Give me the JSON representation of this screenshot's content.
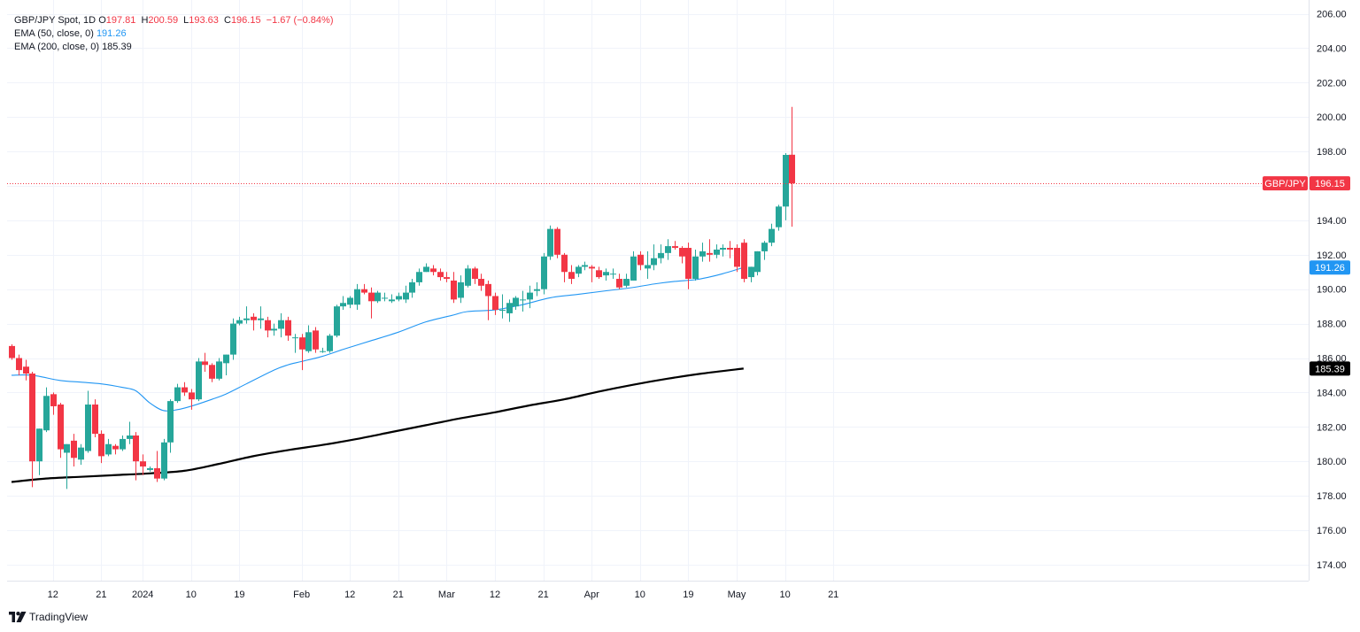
{
  "legend": {
    "symbol": "GBP/JPY Spot, 1D",
    "o_label": "O",
    "open": "197.81",
    "h_label": "H",
    "high": "200.59",
    "l_label": "L",
    "low": "193.63",
    "c_label": "C",
    "close": "196.15",
    "change": "−1.67 (−0.84%)",
    "ema50_label": "EMA (50, close, 0)",
    "ema50_value": "191.26",
    "ema200_label": "EMA (200, close, 0)",
    "ema200_value": "185.39"
  },
  "brand": {
    "name": "TradingView"
  },
  "colors": {
    "up": "#26a69a",
    "down": "#f23645",
    "ema50": "#2196f3",
    "ema200": "#000000",
    "grid": "#f0f3fa",
    "text": "#131722",
    "last_price": "#f23645"
  },
  "chart_data": {
    "type": "candlestick",
    "title": "GBP/JPY Spot, 1D",
    "ylim": [
      173,
      206
    ],
    "y_ticks": [
      174,
      176,
      178,
      180,
      182,
      184,
      186,
      188,
      190,
      192,
      194,
      196,
      198,
      200,
      202,
      204,
      206
    ],
    "y_tick_labels": [
      "174.00",
      "176.00",
      "178.00",
      "180.00",
      "182.00",
      "184.00",
      "186.00",
      "188.00",
      "190.00",
      "192.00",
      "194.00",
      "196.00",
      "198.00",
      "200.00",
      "202.00",
      "204.00",
      "206.00"
    ],
    "x_ticks": [
      {
        "i": 6,
        "label": "12"
      },
      {
        "i": 13,
        "label": "21"
      },
      {
        "i": 19,
        "label": "2024"
      },
      {
        "i": 26,
        "label": "10"
      },
      {
        "i": 33,
        "label": "19"
      },
      {
        "i": 42,
        "label": "Feb"
      },
      {
        "i": 49,
        "label": "12"
      },
      {
        "i": 56,
        "label": "21"
      },
      {
        "i": 63,
        "label": "Mar"
      },
      {
        "i": 70,
        "label": "12"
      },
      {
        "i": 77,
        "label": "21"
      },
      {
        "i": 84,
        "label": "Apr"
      },
      {
        "i": 91,
        "label": "10"
      },
      {
        "i": 98,
        "label": "19"
      },
      {
        "i": 105,
        "label": "May"
      },
      {
        "i": 112,
        "label": "10"
      },
      {
        "i": 119,
        "label": "21"
      }
    ],
    "candles": [
      [
        186.7,
        186.8,
        185.9,
        186.0
      ],
      [
        186.0,
        186.2,
        185.0,
        185.3
      ],
      [
        185.5,
        185.9,
        184.7,
        185.1
      ],
      [
        185.1,
        185.2,
        178.5,
        180.0
      ],
      [
        180.0,
        181.9,
        179.2,
        181.9
      ],
      [
        181.8,
        184.3,
        181.7,
        183.8
      ],
      [
        183.9,
        184.0,
        182.7,
        183.2
      ],
      [
        183.3,
        183.4,
        180.2,
        180.7
      ],
      [
        180.5,
        181.0,
        178.4,
        181.0
      ],
      [
        181.2,
        181.6,
        179.7,
        180.2
      ],
      [
        180.1,
        181.0,
        179.8,
        180.8
      ],
      [
        180.6,
        184.1,
        180.5,
        183.3
      ],
      [
        183.3,
        183.6,
        181.4,
        181.6
      ],
      [
        181.6,
        181.8,
        179.9,
        180.3
      ],
      [
        180.4,
        181.3,
        180.3,
        181.0
      ],
      [
        180.9,
        181.0,
        180.4,
        180.7
      ],
      [
        180.7,
        181.5,
        180.6,
        181.3
      ],
      [
        181.3,
        182.3,
        181.0,
        181.5
      ],
      [
        181.5,
        181.7,
        178.9,
        180.0
      ],
      [
        180.0,
        180.4,
        179.2,
        179.7
      ],
      [
        179.5,
        179.7,
        179.4,
        179.6
      ],
      [
        179.6,
        180.6,
        178.8,
        179.0
      ],
      [
        179.0,
        181.3,
        178.9,
        181.1
      ],
      [
        181.1,
        183.6,
        180.5,
        183.5
      ],
      [
        183.5,
        184.5,
        183.4,
        184.3
      ],
      [
        184.3,
        184.6,
        183.8,
        184.0
      ],
      [
        184.0,
        184.2,
        183.0,
        183.6
      ],
      [
        183.6,
        186.0,
        183.5,
        185.8
      ],
      [
        185.8,
        186.3,
        185.2,
        185.6
      ],
      [
        185.6,
        185.7,
        184.6,
        184.8
      ],
      [
        184.8,
        186.0,
        184.7,
        185.8
      ],
      [
        185.7,
        186.2,
        185.0,
        186.2
      ],
      [
        186.2,
        188.3,
        185.9,
        188.0
      ],
      [
        188.0,
        188.4,
        187.9,
        188.2
      ],
      [
        188.2,
        189.0,
        188.0,
        188.3
      ],
      [
        188.4,
        188.6,
        187.6,
        188.2
      ],
      [
        188.2,
        189.0,
        187.7,
        188.3
      ],
      [
        188.2,
        188.4,
        187.2,
        187.6
      ],
      [
        187.6,
        188.0,
        187.3,
        187.7
      ],
      [
        187.7,
        188.6,
        187.2,
        188.2
      ],
      [
        188.2,
        188.4,
        187.0,
        187.3
      ],
      [
        187.2,
        187.4,
        186.3,
        187.2
      ],
      [
        187.2,
        187.4,
        185.3,
        186.5
      ],
      [
        186.4,
        187.9,
        186.3,
        187.5
      ],
      [
        187.6,
        187.8,
        186.3,
        186.5
      ],
      [
        186.4,
        186.6,
        186.3,
        186.4
      ],
      [
        186.4,
        187.4,
        186.3,
        187.3
      ],
      [
        187.3,
        189.1,
        187.2,
        189.0
      ],
      [
        189.0,
        189.6,
        188.8,
        189.2
      ],
      [
        189.1,
        189.6,
        188.9,
        189.5
      ],
      [
        189.1,
        190.3,
        188.8,
        190.0
      ],
      [
        190.0,
        190.3,
        189.7,
        189.8
      ],
      [
        189.8,
        190.1,
        188.3,
        189.3
      ],
      [
        189.3,
        189.9,
        189.2,
        189.8
      ],
      [
        189.5,
        189.8,
        189.3,
        189.5
      ],
      [
        189.3,
        189.7,
        189.2,
        189.4
      ],
      [
        189.4,
        189.8,
        189.3,
        189.6
      ],
      [
        189.4,
        190.2,
        189.2,
        189.8
      ],
      [
        189.8,
        190.6,
        189.5,
        190.4
      ],
      [
        190.4,
        191.2,
        190.2,
        191.0
      ],
      [
        191.0,
        191.5,
        191.0,
        191.3
      ],
      [
        191.2,
        191.4,
        190.8,
        191.0
      ],
      [
        191.0,
        191.2,
        190.5,
        190.7
      ],
      [
        190.7,
        191.0,
        190.4,
        190.6
      ],
      [
        190.5,
        191.0,
        189.2,
        189.4
      ],
      [
        189.5,
        190.8,
        189.2,
        190.4
      ],
      [
        190.2,
        191.4,
        190.1,
        191.2
      ],
      [
        191.2,
        191.3,
        190.3,
        190.6
      ],
      [
        190.6,
        190.9,
        189.9,
        190.2
      ],
      [
        190.3,
        190.5,
        188.2,
        189.6
      ],
      [
        189.6,
        189.8,
        188.5,
        188.8
      ],
      [
        188.8,
        189.7,
        188.3,
        188.8
      ],
      [
        188.6,
        189.4,
        188.1,
        189.2
      ],
      [
        189.0,
        189.6,
        188.8,
        189.5
      ],
      [
        189.4,
        189.9,
        188.7,
        189.4
      ],
      [
        189.4,
        190.2,
        188.9,
        189.8
      ],
      [
        189.9,
        190.4,
        189.6,
        190.0
      ],
      [
        190.0,
        192.1,
        189.7,
        191.9
      ],
      [
        191.9,
        193.7,
        191.7,
        193.5
      ],
      [
        193.5,
        193.6,
        191.8,
        192.0
      ],
      [
        192.0,
        192.1,
        190.4,
        191.0
      ],
      [
        191.0,
        191.4,
        190.3,
        190.6
      ],
      [
        190.9,
        191.4,
        190.7,
        191.3
      ],
      [
        191.3,
        191.6,
        191.1,
        191.4
      ],
      [
        191.3,
        191.4,
        190.4,
        191.2
      ],
      [
        191.1,
        191.3,
        190.6,
        190.7
      ],
      [
        190.8,
        191.2,
        190.5,
        191.0
      ],
      [
        190.9,
        191.2,
        190.6,
        190.9
      ],
      [
        190.6,
        190.9,
        190.0,
        190.1
      ],
      [
        190.2,
        190.9,
        190.1,
        190.6
      ],
      [
        190.5,
        192.2,
        190.5,
        191.9
      ],
      [
        192.0,
        192.2,
        191.1,
        191.4
      ],
      [
        191.2,
        192.2,
        190.6,
        191.4
      ],
      [
        191.4,
        192.6,
        191.1,
        191.8
      ],
      [
        191.8,
        192.6,
        191.5,
        192.1
      ],
      [
        192.1,
        192.9,
        191.7,
        192.5
      ],
      [
        192.5,
        192.8,
        192.3,
        192.4
      ],
      [
        192.4,
        192.5,
        191.5,
        191.9
      ],
      [
        192.4,
        192.7,
        190.0,
        190.6
      ],
      [
        190.6,
        192.3,
        190.5,
        191.9
      ],
      [
        191.9,
        192.7,
        191.6,
        192.2
      ],
      [
        192.1,
        192.9,
        191.6,
        192.0
      ],
      [
        192.0,
        192.6,
        191.8,
        192.3
      ],
      [
        192.3,
        192.6,
        191.9,
        192.4
      ],
      [
        192.4,
        192.8,
        191.8,
        192.3
      ],
      [
        192.4,
        192.6,
        191.0,
        191.3
      ],
      [
        192.7,
        192.9,
        190.4,
        190.6
      ],
      [
        190.7,
        191.3,
        190.4,
        191.3
      ],
      [
        191.0,
        192.2,
        190.8,
        192.2
      ],
      [
        192.2,
        192.8,
        191.7,
        192.7
      ],
      [
        192.7,
        193.8,
        192.5,
        193.5
      ],
      [
        193.6,
        194.9,
        193.4,
        194.8
      ],
      [
        194.8,
        197.9,
        194.0,
        197.8
      ],
      [
        197.81,
        200.59,
        193.63,
        196.15
      ]
    ],
    "ema50_values": [
      {
        "i": 0,
        "v": 185.0
      },
      {
        "i": 3,
        "v": 185.0
      },
      {
        "i": 7,
        "v": 184.7
      },
      {
        "i": 10,
        "v": 184.6
      },
      {
        "i": 13,
        "v": 184.5
      },
      {
        "i": 16,
        "v": 184.3
      },
      {
        "i": 18,
        "v": 184.1
      },
      {
        "i": 20,
        "v": 183.4
      },
      {
        "i": 22,
        "v": 182.95
      },
      {
        "i": 24,
        "v": 183.0
      },
      {
        "i": 26,
        "v": 183.2
      },
      {
        "i": 29,
        "v": 183.6
      },
      {
        "i": 31,
        "v": 183.9
      },
      {
        "i": 34,
        "v": 184.5
      },
      {
        "i": 38,
        "v": 185.3
      },
      {
        "i": 40,
        "v": 185.6
      },
      {
        "i": 42,
        "v": 185.8
      },
      {
        "i": 45,
        "v": 186.1
      },
      {
        "i": 48,
        "v": 186.5
      },
      {
        "i": 52,
        "v": 187.0
      },
      {
        "i": 56,
        "v": 187.5
      },
      {
        "i": 60,
        "v": 188.1
      },
      {
        "i": 64,
        "v": 188.5
      },
      {
        "i": 66,
        "v": 188.7
      },
      {
        "i": 70,
        "v": 188.8
      },
      {
        "i": 74,
        "v": 189.1
      },
      {
        "i": 78,
        "v": 189.5
      },
      {
        "i": 82,
        "v": 189.7
      },
      {
        "i": 86,
        "v": 189.9
      },
      {
        "i": 90,
        "v": 190.1
      },
      {
        "i": 93,
        "v": 190.3
      },
      {
        "i": 96,
        "v": 190.45
      },
      {
        "i": 99,
        "v": 190.55
      },
      {
        "i": 101,
        "v": 190.7
      },
      {
        "i": 103,
        "v": 190.9
      },
      {
        "i": 106,
        "v": 191.26
      }
    ],
    "ema200_values": [
      {
        "i": 0,
        "v": 178.8
      },
      {
        "i": 5,
        "v": 179.0
      },
      {
        "i": 10,
        "v": 179.1
      },
      {
        "i": 15,
        "v": 179.2
      },
      {
        "i": 20,
        "v": 179.3
      },
      {
        "i": 25,
        "v": 179.45
      },
      {
        "i": 30,
        "v": 179.85
      },
      {
        "i": 35,
        "v": 180.3
      },
      {
        "i": 40,
        "v": 180.65
      },
      {
        "i": 45,
        "v": 180.95
      },
      {
        "i": 50,
        "v": 181.3
      },
      {
        "i": 55,
        "v": 181.7
      },
      {
        "i": 60,
        "v": 182.1
      },
      {
        "i": 65,
        "v": 182.5
      },
      {
        "i": 70,
        "v": 182.85
      },
      {
        "i": 75,
        "v": 183.25
      },
      {
        "i": 80,
        "v": 183.6
      },
      {
        "i": 85,
        "v": 184.05
      },
      {
        "i": 90,
        "v": 184.45
      },
      {
        "i": 95,
        "v": 184.8
      },
      {
        "i": 100,
        "v": 185.1
      },
      {
        "i": 106,
        "v": 185.39
      }
    ],
    "last_price": 196.15,
    "price_tags": [
      {
        "label": "GBP/JPY",
        "value": "196.15",
        "price": 196.15,
        "color": "#f23645"
      },
      {
        "label": "",
        "value": "191.26",
        "price": 191.26,
        "color": "#2196f3"
      },
      {
        "label": "",
        "value": "185.39",
        "price": 185.39,
        "color": "#000000"
      }
    ]
  }
}
